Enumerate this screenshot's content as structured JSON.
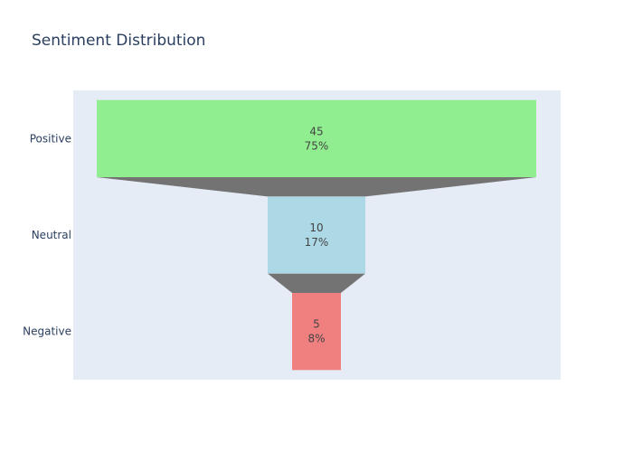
{
  "chart_data": {
    "type": "funnel",
    "title": "Sentiment Distribution",
    "categories": [
      "Positive",
      "Neutral",
      "Negative"
    ],
    "values": [
      45,
      10,
      5
    ],
    "percent_labels": [
      "75%",
      "17%",
      "8%"
    ],
    "colors": [
      "#90ee90",
      "#add8e6",
      "#f08080"
    ],
    "connector_color": "#737373",
    "plot_background": "#e5ecf6",
    "grid": false
  }
}
